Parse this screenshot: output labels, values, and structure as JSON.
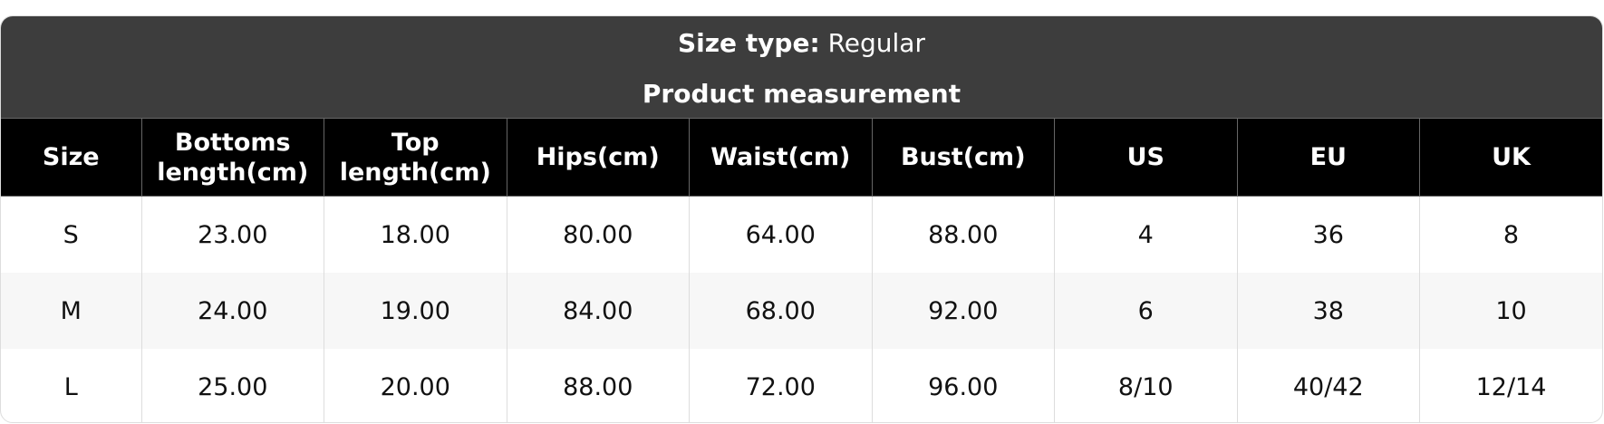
{
  "size_type": {
    "label": "Size type:",
    "value": "Regular"
  },
  "section_title": "Product measurement",
  "columns": [
    "Size",
    "Bottoms length(cm)",
    "Top length(cm)",
    "Hips(cm)",
    "Waist(cm)",
    "Bust(cm)",
    "US",
    "EU",
    "UK"
  ],
  "rows": [
    [
      "S",
      "23.00",
      "18.00",
      "80.00",
      "64.00",
      "88.00",
      "4",
      "36",
      "8"
    ],
    [
      "M",
      "24.00",
      "19.00",
      "84.00",
      "68.00",
      "92.00",
      "6",
      "38",
      "10"
    ],
    [
      "L",
      "25.00",
      "20.00",
      "88.00",
      "72.00",
      "96.00",
      "8/10",
      "40/42",
      "12/14"
    ]
  ]
}
